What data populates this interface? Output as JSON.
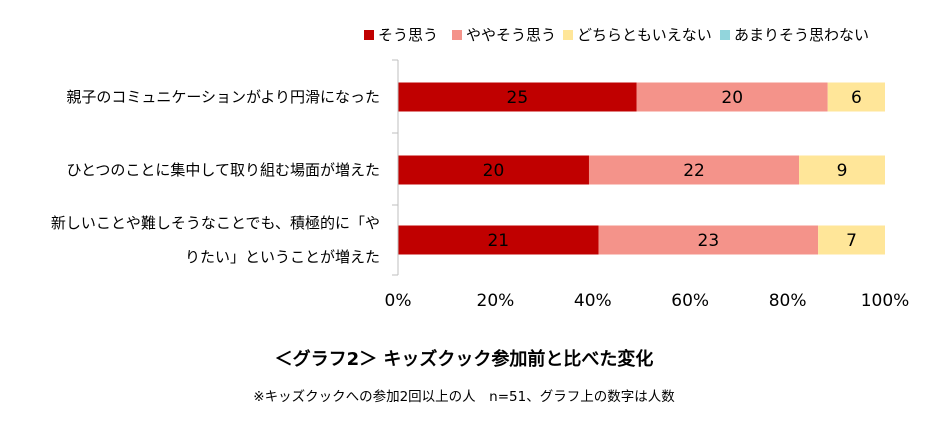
{
  "chart_data": {
    "type": "bar",
    "orientation": "horizontal",
    "stacked": "percent",
    "title": "＜グラフ2＞ キッズクック参加前と比べた変化",
    "note": "※キッズクックへの参加2回以上の人　n=51、グラフ上の数字は人数",
    "categories": [
      [
        "親子のコミュニケーションがより円滑になった"
      ],
      [
        "ひとつのことに集中して取り組む場面が増えた"
      ],
      [
        "新しいことや難しそうなことでも、積極的に「や",
        "りたい」ということが増えた"
      ]
    ],
    "series": [
      {
        "name": "そう思う",
        "color": "#C00000",
        "values": [
          25,
          20,
          21
        ]
      },
      {
        "name": "ややそう思う",
        "color": "#F4938A",
        "values": [
          20,
          22,
          23
        ]
      },
      {
        "name": "どちらともいえない",
        "color": "#FFE699",
        "values": [
          6,
          9,
          7
        ]
      },
      {
        "name": "あまりそう思わない",
        "color": "#92D5DC",
        "values": [
          0,
          0,
          0
        ]
      }
    ],
    "xticks": [
      "0%",
      "20%",
      "40%",
      "60%",
      "80%",
      "100%"
    ],
    "xlim": [
      0,
      100
    ],
    "legend_position": "top",
    "grid": false
  }
}
